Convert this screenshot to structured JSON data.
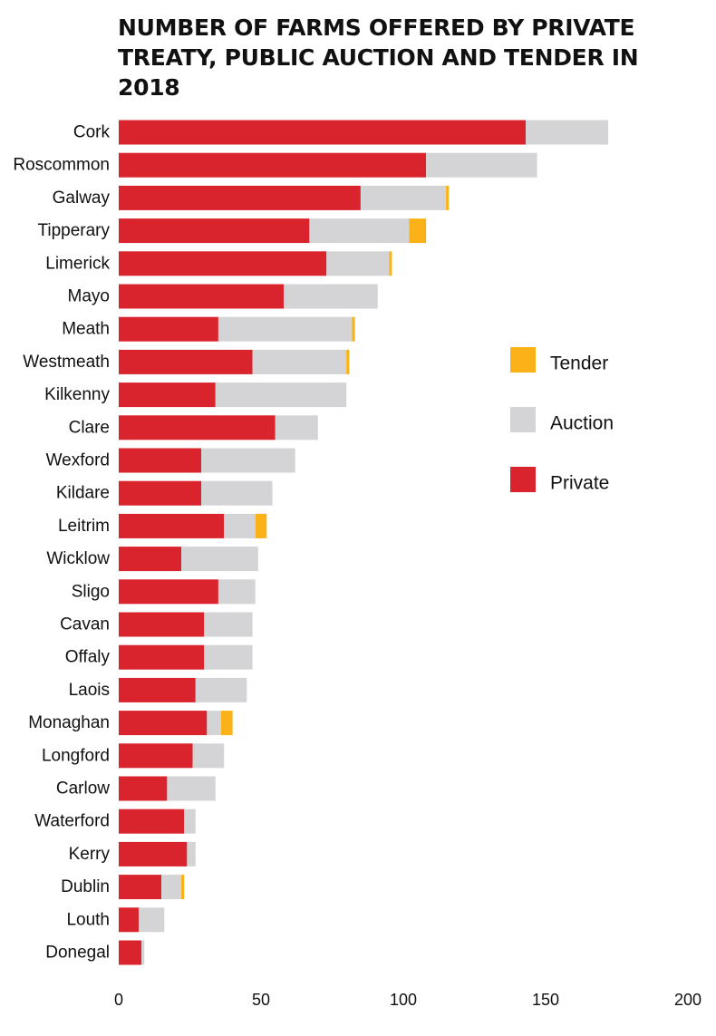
{
  "chart_data": {
    "type": "bar",
    "orientation": "horizontal",
    "stacked": true,
    "title": "NUMBER OF FARMS OFFERED BY PRIVATE TREATY, PUBLIC AUCTION AND TENDER IN 2018",
    "xlabel": "",
    "ylabel": "",
    "xlim": [
      0,
      200
    ],
    "xticks": [
      "0",
      "50",
      "100",
      "150",
      "200"
    ],
    "grid": false,
    "legend_position": "right",
    "categories": [
      "Cork",
      "Roscommon",
      "Galway",
      "Tipperary",
      "Limerick",
      "Mayo",
      "Meath",
      "Westmeath",
      "Kilkenny",
      "Clare",
      "Wexford",
      "Kildare",
      "Leitrim",
      "Wicklow",
      "Sligo",
      "Cavan",
      "Offaly",
      "Laois",
      "Monaghan",
      "Longford",
      "Carlow",
      "Waterford",
      "Kerry",
      "Dublin",
      "Louth",
      "Donegal"
    ],
    "series": [
      {
        "name": "Private",
        "color": "#d9232d",
        "values": [
          143,
          108,
          85,
          67,
          73,
          58,
          35,
          47,
          34,
          55,
          29,
          29,
          37,
          22,
          35,
          30,
          30,
          27,
          31,
          26,
          17,
          23,
          24,
          15,
          7,
          8
        ]
      },
      {
        "name": "Auction",
        "color": "#d4d4d6",
        "values": [
          29,
          39,
          30,
          35,
          22,
          33,
          47,
          33,
          46,
          15,
          33,
          25,
          11,
          27,
          13,
          17,
          17,
          18,
          5,
          11,
          17,
          4,
          3,
          7,
          9,
          1
        ]
      },
      {
        "name": "Tender",
        "color": "#fbb218",
        "values": [
          0,
          0,
          1,
          6,
          1,
          0,
          1,
          1,
          0,
          0,
          0,
          0,
          4,
          0,
          0,
          0,
          0,
          0,
          4,
          0,
          0,
          0,
          0,
          1,
          0,
          0
        ]
      }
    ],
    "legend": [
      {
        "name": "Tender",
        "color": "#fbb218"
      },
      {
        "name": "Auction",
        "color": "#d4d4d6"
      },
      {
        "name": "Private",
        "color": "#d9232d"
      }
    ]
  }
}
